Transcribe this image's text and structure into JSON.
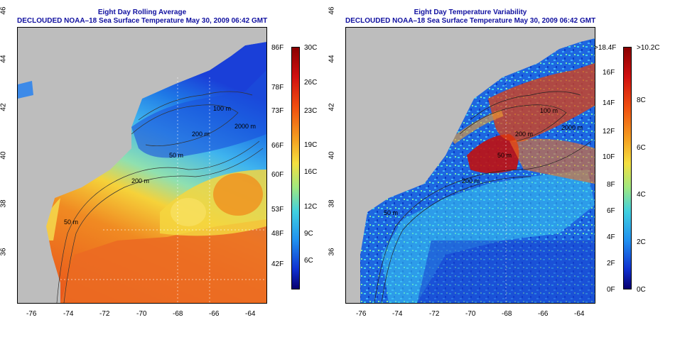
{
  "left_panel": {
    "title_line1": "Eight Day Rolling Average",
    "title_line2": "DECLOUDED NOAA–18 Sea Surface Temperature May 30, 2009 06:42 GMT",
    "colorbar_f": [
      "86F",
      "78F",
      "73F",
      "66F",
      "60F",
      "53F",
      "48F",
      "42F"
    ],
    "colorbar_c": [
      "30C",
      "26C",
      "23C",
      "19C",
      "16C",
      "12C",
      "9C",
      "6C"
    ],
    "contour_labels": [
      "100 m",
      "200 m",
      "2000 m",
      "50 m",
      "200 m",
      "50 m"
    ]
  },
  "right_panel": {
    "title_line1": "Eight Day Temperature Variability",
    "title_line2": "DECLOUDED NOAA–18 Sea Surface Temperature May 30, 2009 06:42 GMT",
    "colorbar_f": [
      ">18.4F",
      "16F",
      "14F",
      "12F",
      "10F",
      "8F",
      "6F",
      "4F",
      "2F",
      "0F"
    ],
    "colorbar_c": [
      ">10.2C",
      "8C",
      "6C",
      "4C",
      "2C",
      "0C"
    ],
    "contour_labels": [
      "100 m",
      "2000 m",
      "200 m",
      "50 m",
      "200 m",
      "50 m"
    ]
  },
  "axes": {
    "lon_ticks": [
      "-76",
      "-74",
      "-72",
      "-70",
      "-68",
      "-66",
      "-64"
    ],
    "lat_ticks": [
      "36",
      "38",
      "40",
      "42",
      "44",
      "46"
    ]
  },
  "colors": {
    "title": "#1010a0",
    "land": "#bdbdbd"
  }
}
